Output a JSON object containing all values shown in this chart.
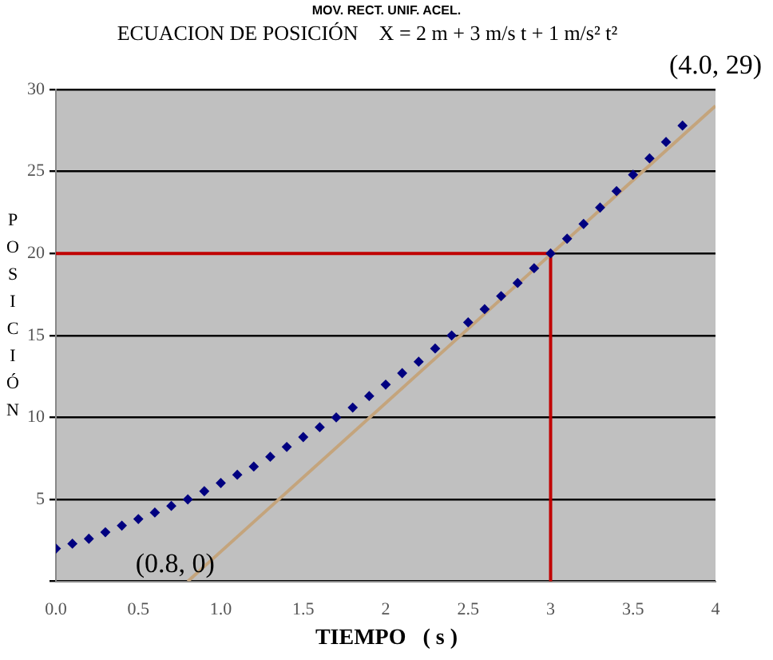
{
  "chart_data": {
    "type": "scatter",
    "subtitle": "MOV. RECT. UNIF. ACEL.",
    "title": "ECUACION DE POSICIÓN    X = 2 m + 3 m/s t + 1 m/s² t²",
    "xlabel": "TIEMPO   ( s )",
    "ylabel": "POSICIÓN",
    "x": [
      0,
      0.1,
      0.2,
      0.3,
      0.4,
      0.5,
      0.6,
      0.7,
      0.8,
      0.9,
      1.0,
      1.1,
      1.2,
      1.3,
      1.4,
      1.5,
      1.6,
      1.7,
      1.8,
      1.9,
      2.0,
      2.1,
      2.2,
      2.3,
      2.4,
      2.5,
      2.6,
      2.7,
      2.8,
      2.9,
      3.0,
      3.1,
      3.2,
      3.3,
      3.4,
      3.5,
      3.6,
      3.7,
      3.8
    ],
    "series": [
      {
        "type": "scatter",
        "color": "#000080",
        "marker": "diamond",
        "values": [
          2,
          2.3,
          2.6,
          3,
          3.4,
          3.8,
          4.2,
          4.6,
          5,
          5.5,
          6,
          6.5,
          7,
          7.6,
          8.2,
          8.8,
          9.4,
          10,
          10.6,
          11.3,
          12,
          12.7,
          13.4,
          14.2,
          15,
          15.8,
          16.6,
          17.4,
          18.2,
          19.1,
          20,
          20.9,
          21.8,
          22.8,
          23.8,
          24.8,
          25.8,
          26.8,
          27.8
        ]
      },
      {
        "type": "line",
        "color": "#c4a47c",
        "x": [
          0.8,
          4
        ],
        "values": [
          0,
          29
        ]
      },
      {
        "type": "line",
        "color": "#c00000",
        "x": [
          0,
          3,
          3
        ],
        "values": [
          20,
          20,
          0
        ]
      }
    ],
    "xlim": [
      0,
      4
    ],
    "xticks": [
      {
        "value": 0,
        "label": "0.0"
      },
      {
        "value": 0.5,
        "label": "0.5"
      },
      {
        "value": 1,
        "label": "1.0"
      },
      {
        "value": 1.5,
        "label": "1.5"
      },
      2,
      2.5,
      3,
      3.5,
      4
    ],
    "ylim": [
      0,
      30
    ],
    "yticks": [
      {
        "value": 0,
        "label": null
      },
      5,
      10,
      15,
      20,
      25,
      30
    ],
    "grid": "y",
    "legend": false,
    "annotations": [
      {
        "text": "(4.0, 29)",
        "x": 4,
        "y": 29
      },
      {
        "text": "(0.8, 0)",
        "x": 0.8,
        "y": 0
      }
    ]
  }
}
